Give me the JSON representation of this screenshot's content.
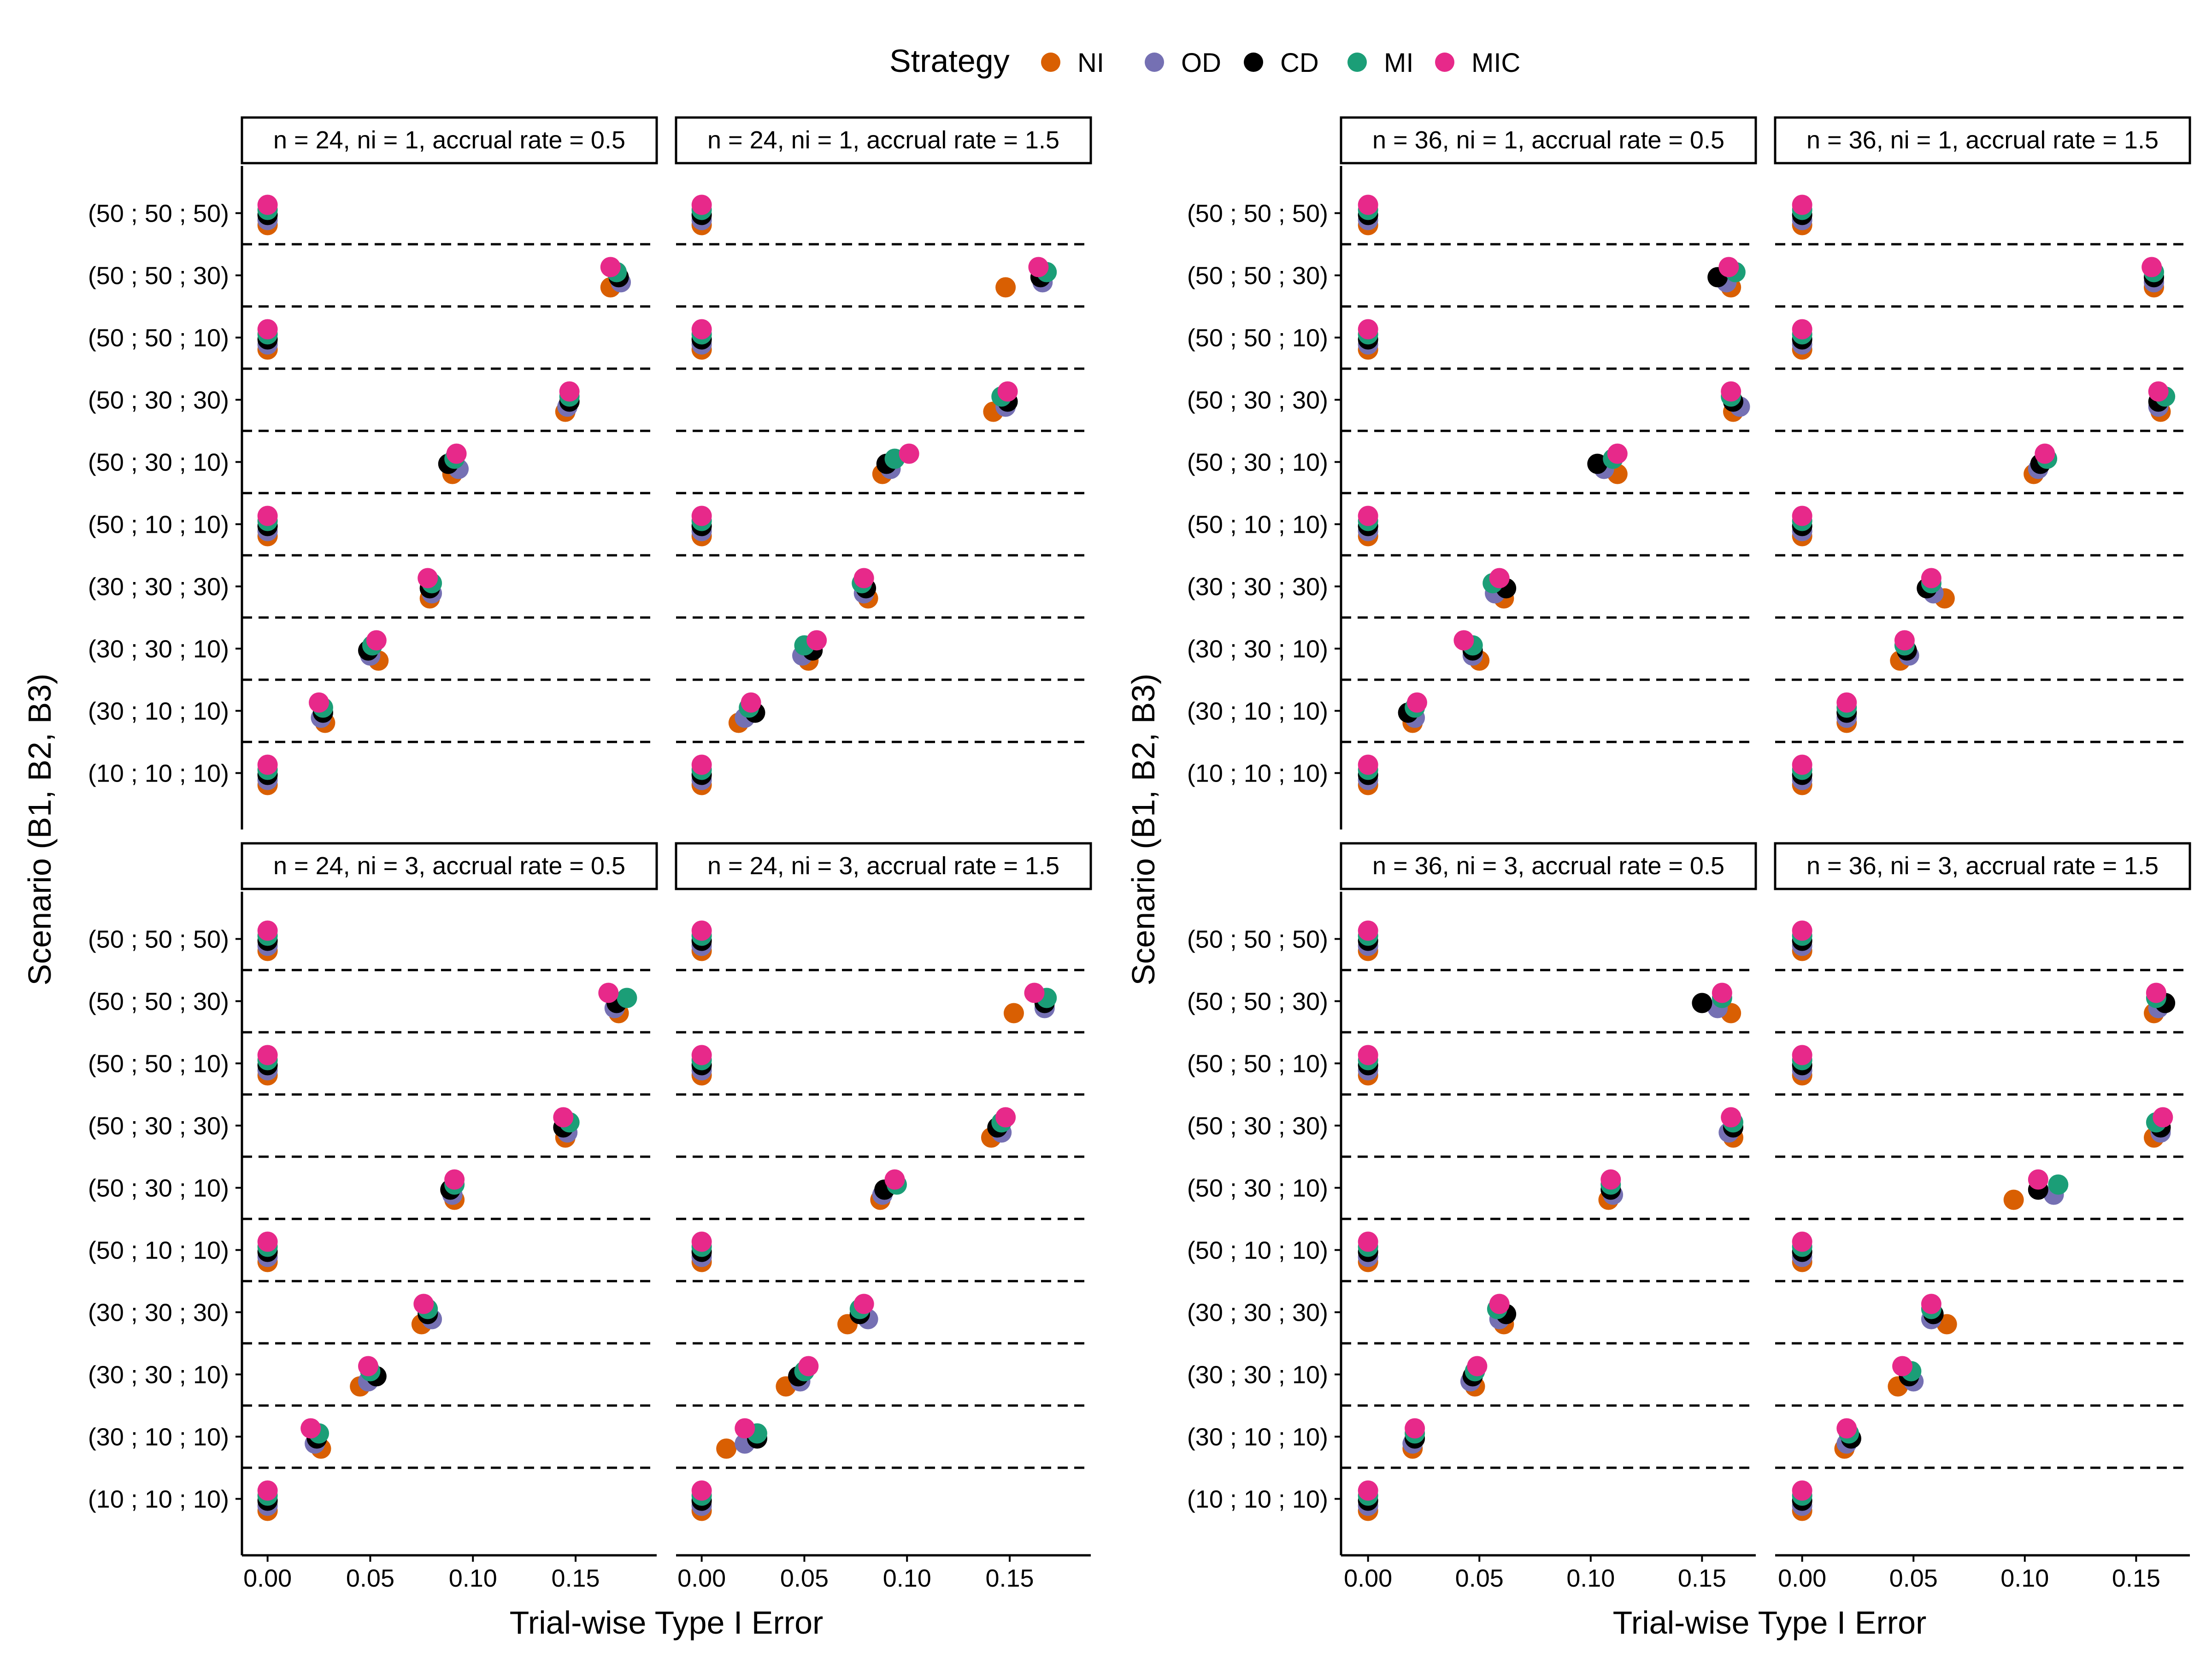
{
  "chart_data": {
    "type": "scatter",
    "legend": {
      "title": "Strategy",
      "placement": "top",
      "entries": [
        {
          "name": "NI",
          "color": "#D95F02"
        },
        {
          "name": "OD",
          "color": "#7570B3"
        },
        {
          "name": "CD",
          "color": "#000000"
        },
        {
          "name": "MI",
          "color": "#1B9E77"
        },
        {
          "name": "MIC",
          "color": "#E7298A"
        }
      ]
    },
    "ylabel": "Scenario (B1, B2, B3)",
    "xlabel": "Trial-wise Type I Error",
    "scenarios": [
      "(50 ; 50 ; 50)",
      "(50 ; 50 ; 30)",
      "(50 ; 50 ; 10)",
      "(50 ; 30 ; 30)",
      "(50 ; 30 ; 10)",
      "(50 ; 10 ; 10)",
      "(30 ; 30 ; 30)",
      "(30 ; 30 ; 10)",
      "(30 ; 10 ; 10)",
      "(10 ; 10 ; 10)"
    ],
    "series_order": [
      "NI",
      "OD",
      "CD",
      "MI",
      "MIC"
    ],
    "groups": [
      {
        "name": "n = 24",
        "xlim": [
          -0.008,
          0.185
        ],
        "xticks": [
          0.0,
          0.05,
          0.1,
          0.15
        ],
        "xtick_labels": [
          "0.00",
          "0.05",
          "0.10",
          "0.15"
        ],
        "panels": [
          {
            "strip": "n = 24, ni = 1, accrual rate = 0.5",
            "row": 0,
            "col": 0,
            "values": [
              [
                0,
                0,
                0,
                0,
                0
              ],
              [
                0.167,
                0.172,
                0.171,
                0.17,
                0.167
              ],
              [
                0,
                0,
                0,
                0,
                0
              ],
              [
                0.145,
                0.146,
                0.147,
                0.147,
                0.147
              ],
              [
                0.09,
                0.093,
                0.088,
                0.091,
                0.092
              ],
              [
                0,
                0,
                0,
                0,
                0
              ],
              [
                0.079,
                0.08,
                0.079,
                0.08,
                0.078
              ],
              [
                0.054,
                0.05,
                0.049,
                0.051,
                0.053
              ],
              [
                0.028,
                0.026,
                0.027,
                0.027,
                0.025
              ],
              [
                0,
                0,
                0,
                0,
                0
              ]
            ]
          },
          {
            "strip": "n = 24, ni = 1, accrual rate = 1.5",
            "row": 0,
            "col": 1,
            "values": [
              [
                0,
                0,
                0,
                0,
                0
              ],
              [
                0.148,
                0.166,
                0.165,
                0.168,
                0.164
              ],
              [
                0,
                0,
                0,
                0,
                0
              ],
              [
                0.142,
                0.148,
                0.149,
                0.146,
                0.149
              ],
              [
                0.088,
                0.092,
                0.09,
                0.094,
                0.101
              ],
              [
                0,
                0,
                0,
                0,
                0
              ],
              [
                0.081,
                0.079,
                0.08,
                0.078,
                0.079
              ],
              [
                0.052,
                0.049,
                0.054,
                0.05,
                0.056
              ],
              [
                0.018,
                0.021,
                0.026,
                0.023,
                0.024
              ],
              [
                0,
                0,
                0,
                0,
                0
              ]
            ]
          },
          {
            "strip": "n = 24, ni = 3, accrual rate = 0.5",
            "row": 1,
            "col": 0,
            "values": [
              [
                0,
                0,
                0,
                0,
                0
              ],
              [
                0.171,
                0.169,
                0.17,
                0.175,
                0.166
              ],
              [
                0,
                0,
                0,
                0,
                0
              ],
              [
                0.145,
                0.146,
                0.144,
                0.147,
                0.144
              ],
              [
                0.091,
                0.09,
                0.089,
                0.091,
                0.091
              ],
              [
                0,
                0,
                0,
                0,
                0
              ],
              [
                0.075,
                0.08,
                0.078,
                0.078,
                0.076
              ],
              [
                0.045,
                0.049,
                0.053,
                0.05,
                0.049
              ],
              [
                0.026,
                0.023,
                0.024,
                0.025,
                0.021
              ],
              [
                0,
                0,
                0,
                0,
                0
              ]
            ]
          },
          {
            "strip": "n = 24, ni = 3, accrual rate = 1.5",
            "row": 1,
            "col": 1,
            "values": [
              [
                0,
                0,
                0,
                0,
                0
              ],
              [
                0.152,
                0.167,
                0.167,
                0.168,
                0.162
              ],
              [
                0,
                0,
                0,
                0,
                0
              ],
              [
                0.141,
                0.146,
                0.144,
                0.146,
                0.148
              ],
              [
                0.087,
                0.088,
                0.089,
                0.095,
                0.094
              ],
              [
                0,
                0,
                0,
                0,
                0
              ],
              [
                0.071,
                0.081,
                0.077,
                0.077,
                0.079
              ],
              [
                0.041,
                0.048,
                0.047,
                0.05,
                0.052
              ],
              [
                0.012,
                0.021,
                0.027,
                0.027,
                0.021
              ],
              [
                0,
                0,
                0,
                0,
                0
              ]
            ]
          }
        ]
      },
      {
        "name": "n = 36",
        "xlim": [
          -0.008,
          0.17
        ],
        "xticks": [
          0.0,
          0.05,
          0.1,
          0.15
        ],
        "xtick_labels": [
          "0.00",
          "0.05",
          "0.10",
          "0.15"
        ],
        "panels": [
          {
            "strip": "n = 36, ni = 1, accrual rate = 0.5",
            "row": 0,
            "col": 0,
            "values": [
              [
                0,
                0,
                0,
                0,
                0
              ],
              [
                0.163,
                0.161,
                0.157,
                0.165,
                0.162
              ],
              [
                0,
                0,
                0,
                0,
                0
              ],
              [
                0.164,
                0.167,
                0.164,
                0.163,
                0.163
              ],
              [
                0.112,
                0.106,
                0.103,
                0.11,
                0.112
              ],
              [
                0,
                0,
                0,
                0,
                0
              ],
              [
                0.061,
                0.057,
                0.062,
                0.056,
                0.059
              ],
              [
                0.05,
                0.047,
                0.047,
                0.047,
                0.043
              ],
              [
                0.02,
                0.021,
                0.018,
                0.021,
                0.022
              ],
              [
                0,
                0,
                0,
                0,
                0
              ]
            ]
          },
          {
            "strip": "n = 36, ni = 1, accrual rate = 1.5",
            "row": 0,
            "col": 1,
            "values": [
              [
                0,
                0,
                0,
                0,
                0
              ],
              [
                0.158,
                0.158,
                0.158,
                0.158,
                0.157
              ],
              [
                0,
                0,
                0,
                0,
                0
              ],
              [
                0.161,
                0.16,
                0.16,
                0.163,
                0.16
              ],
              [
                0.104,
                0.106,
                0.107,
                0.11,
                0.109
              ],
              [
                0,
                0,
                0,
                0,
                0
              ],
              [
                0.064,
                0.059,
                0.056,
                0.058,
                0.058
              ],
              [
                0.044,
                0.048,
                0.047,
                0.046,
                0.046
              ],
              [
                0.02,
                0.02,
                0.02,
                0.02,
                0.02
              ],
              [
                0,
                0,
                0,
                0,
                0
              ]
            ]
          },
          {
            "strip": "n = 36, ni = 3, accrual rate = 0.5",
            "row": 1,
            "col": 0,
            "values": [
              [
                0,
                0,
                0,
                0,
                0
              ],
              [
                0.163,
                0.157,
                0.15,
                0.159,
                0.159
              ],
              [
                0,
                0,
                0,
                0,
                0
              ],
              [
                0.164,
                0.162,
                0.164,
                0.164,
                0.163
              ],
              [
                0.108,
                0.11,
                0.109,
                0.109,
                0.109
              ],
              [
                0,
                0,
                0,
                0,
                0
              ],
              [
                0.061,
                0.059,
                0.062,
                0.058,
                0.059
              ],
              [
                0.048,
                0.046,
                0.047,
                0.048,
                0.049
              ],
              [
                0.02,
                0.02,
                0.021,
                0.021,
                0.021
              ],
              [
                0,
                0,
                0,
                0,
                0
              ]
            ]
          },
          {
            "strip": "n = 36, ni = 3, accrual rate = 1.5",
            "row": 1,
            "col": 1,
            "values": [
              [
                0,
                0,
                0,
                0,
                0
              ],
              [
                0.158,
                0.16,
                0.163,
                0.159,
                0.159
              ],
              [
                0,
                0,
                0,
                0,
                0
              ],
              [
                0.158,
                0.161,
                0.161,
                0.159,
                0.162
              ],
              [
                0.095,
                0.113,
                0.106,
                0.115,
                0.106
              ],
              [
                0,
                0,
                0,
                0,
                0
              ],
              [
                0.065,
                0.058,
                0.059,
                0.058,
                0.058
              ],
              [
                0.043,
                0.05,
                0.048,
                0.049,
                0.045
              ],
              [
                0.019,
                0.02,
                0.022,
                0.021,
                0.02
              ],
              [
                0,
                0,
                0,
                0,
                0
              ]
            ]
          }
        ]
      }
    ]
  }
}
